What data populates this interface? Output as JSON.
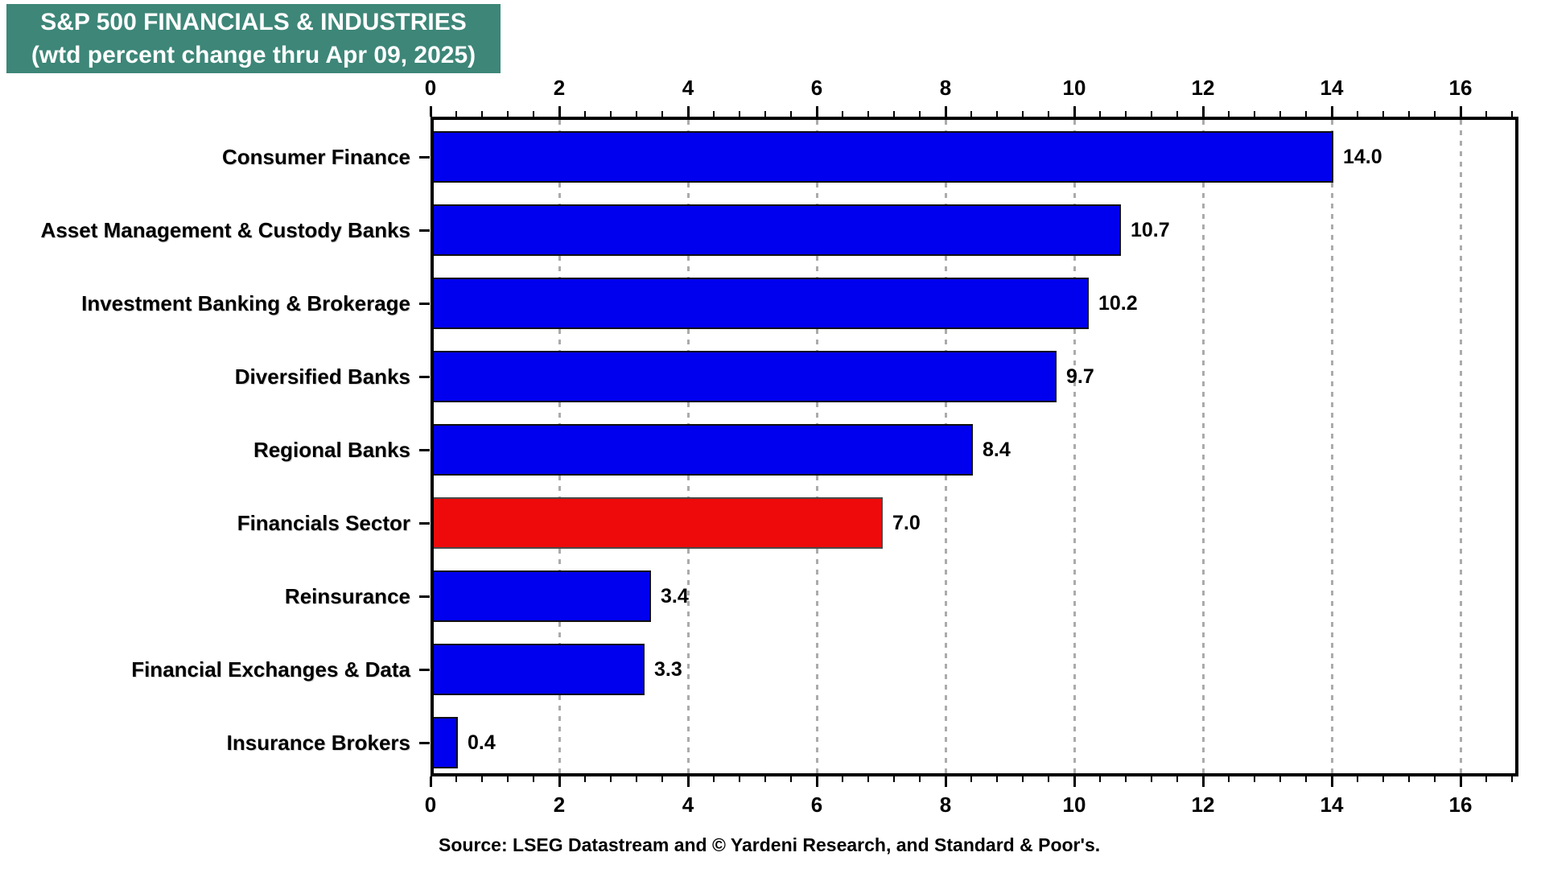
{
  "header": {
    "line1": "S&P 500 FINANCIALS & INDUSTRIES",
    "line2": "(wtd percent change thru Apr 09, 2025)"
  },
  "source": "Source: LSEG Datastream and © Yardeni Research, and Standard & Poor's.",
  "colors": {
    "title_bg": "#3D8678",
    "bar_blue": "#0000EE",
    "bar_red": "#EE0A0A",
    "bar_border_blue": "#101010",
    "bar_border_red": "#4a4a4a",
    "grid": "#ABABAB",
    "text": "#000000"
  },
  "chart_data": {
    "type": "bar",
    "orientation": "horizontal",
    "title": "S&P 500 FINANCIALS & INDUSTRIES (wtd percent change thru Apr 09, 2025)",
    "categories": [
      "Consumer Finance",
      "Asset Management & Custody Banks",
      "Investment Banking & Brokerage",
      "Diversified Banks",
      "Regional Banks",
      "Financials Sector",
      "Reinsurance",
      "Financial Exchanges & Data",
      "Insurance Brokers"
    ],
    "values": [
      14.0,
      10.7,
      10.2,
      9.7,
      8.4,
      7.0,
      3.4,
      3.3,
      0.4
    ],
    "value_labels": [
      "14.0",
      "10.7",
      "10.2",
      "9.7",
      "8.4",
      "7.0",
      "3.4",
      "3.3",
      "0.4"
    ],
    "bar_color_keys": [
      "bar_blue",
      "bar_blue",
      "bar_blue",
      "bar_blue",
      "bar_blue",
      "bar_red",
      "bar_blue",
      "bar_blue",
      "bar_blue"
    ],
    "xlim": [
      0,
      16.9
    ],
    "x_major_ticks": [
      0,
      2,
      4,
      6,
      8,
      10,
      12,
      14,
      16
    ],
    "x_minor_step": 0.4,
    "grid": "vertical dotted gridlines at major ticks",
    "axis_tick_sides": "top and bottom",
    "legend": "none"
  }
}
